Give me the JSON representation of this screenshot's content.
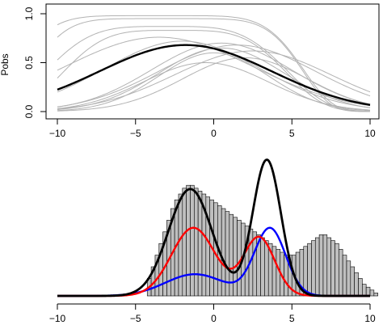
{
  "chart_data": [
    {
      "type": "line",
      "ylabel": "Pobs",
      "xlabel": "",
      "xlim": [
        -10,
        10
      ],
      "ylim": [
        0,
        1
      ],
      "xticks": [
        "−10",
        "−5",
        "0",
        "5",
        "10"
      ],
      "yticks": [
        "0.0",
        "0.5",
        "1.0"
      ],
      "grid": false,
      "series": [
        {
          "role": "mean",
          "color": "#000000",
          "curve": {
            "h": 0.68,
            "mu": -1.8,
            "s": 5.5
          }
        },
        {
          "role": "sample",
          "color": "#b3b3b3",
          "curve": {
            "h": 0.98,
            "mu": -3.5,
            "s": 8.5,
            "steep": 6
          }
        },
        {
          "role": "sample",
          "color": "#b3b3b3",
          "curve": {
            "h": 0.95,
            "mu": -3.0,
            "s": 8.0,
            "steep": 6
          }
        },
        {
          "role": "sample",
          "color": "#b3b3b3",
          "curve": {
            "h": 0.87,
            "mu": -3.0,
            "s": 7.0,
            "steep": 4
          }
        },
        {
          "role": "sample",
          "color": "#b3b3b3",
          "curve": {
            "h": 0.83,
            "mu": -2.5,
            "s": 6.5,
            "steep": 4
          }
        },
        {
          "role": "sample",
          "color": "#b3b3b3",
          "curve": {
            "h": 0.76,
            "mu": -3.5,
            "s": 6.0,
            "steep": 2
          }
        },
        {
          "role": "sample",
          "color": "#b3b3b3",
          "curve": {
            "h": 0.72,
            "mu": -2.0,
            "s": 5.0,
            "steep": 2
          }
        },
        {
          "role": "sample",
          "color": "#b3b3b3",
          "curve": {
            "h": 0.7,
            "mu": 0.5,
            "s": 4.5,
            "steep": 2
          }
        },
        {
          "role": "sample",
          "color": "#b3b3b3",
          "curve": {
            "h": 0.68,
            "mu": 1.5,
            "s": 5.0,
            "steep": 2
          }
        },
        {
          "role": "sample",
          "color": "#b3b3b3",
          "curve": {
            "h": 0.65,
            "mu": 0.5,
            "s": 4.0,
            "steep": 2
          }
        },
        {
          "role": "sample",
          "color": "#b3b3b3",
          "curve": {
            "h": 0.62,
            "mu": 2.5,
            "s": 5.0,
            "steep": 2
          }
        },
        {
          "role": "sample",
          "color": "#b3b3b3",
          "curve": {
            "h": 0.6,
            "mu": 0.0,
            "s": 3.5,
            "steep": 2
          }
        },
        {
          "role": "sample",
          "color": "#b3b3b3",
          "curve": {
            "h": 0.55,
            "mu": 2.0,
            "s": 4.0,
            "steep": 2
          }
        },
        {
          "role": "sample",
          "color": "#b3b3b3",
          "curve": {
            "h": 0.5,
            "mu": -0.5,
            "s": 4.0,
            "steep": 2
          }
        }
      ]
    },
    {
      "type": "bar",
      "xlim": [
        -10,
        10
      ],
      "xticks": [
        "−10",
        "−5",
        "0",
        "5",
        "10"
      ],
      "grid": false,
      "histogram": {
        "bin_width": 0.25,
        "start": -4.25,
        "fill": "#bfbfbf",
        "stroke": "#000000",
        "counts": [
          6,
          10,
          14,
          18,
          22,
          26,
          30,
          33,
          35,
          37,
          38,
          38,
          37,
          36,
          35,
          34,
          33,
          32,
          31,
          30,
          29,
          28,
          27,
          26,
          25,
          24,
          23,
          22,
          21,
          20,
          19,
          18,
          17,
          16,
          15,
          14,
          14,
          14,
          15,
          16,
          17,
          18,
          19,
          20,
          21,
          21,
          20,
          19,
          18,
          16,
          14,
          12,
          10,
          8,
          6,
          4,
          3,
          2,
          1
        ]
      },
      "series": [
        {
          "role": "total",
          "color": "#000000",
          "mixture": [
            {
              "w": 0.55,
              "mu": -1.5,
              "sd": 1.4
            },
            {
              "w": 0.45,
              "mu": 3.4,
              "sd": 0.9
            }
          ],
          "ymax": 52
        },
        {
          "role": "observed",
          "color": "#ff0000",
          "mixture": [
            {
              "w": 0.62,
              "mu": -1.3,
              "sd": 1.4
            },
            {
              "w": 0.38,
              "mu": 2.9,
              "sd": 1.0
            }
          ],
          "ymax": 26
        },
        {
          "role": "unobserved",
          "color": "#0000ff",
          "mixture": [
            {
              "w": 0.38,
              "mu": -1.2,
              "sd": 1.9
            },
            {
              "w": 0.62,
              "mu": 3.6,
              "sd": 1.0
            }
          ],
          "ymax": 26
        }
      ]
    }
  ]
}
